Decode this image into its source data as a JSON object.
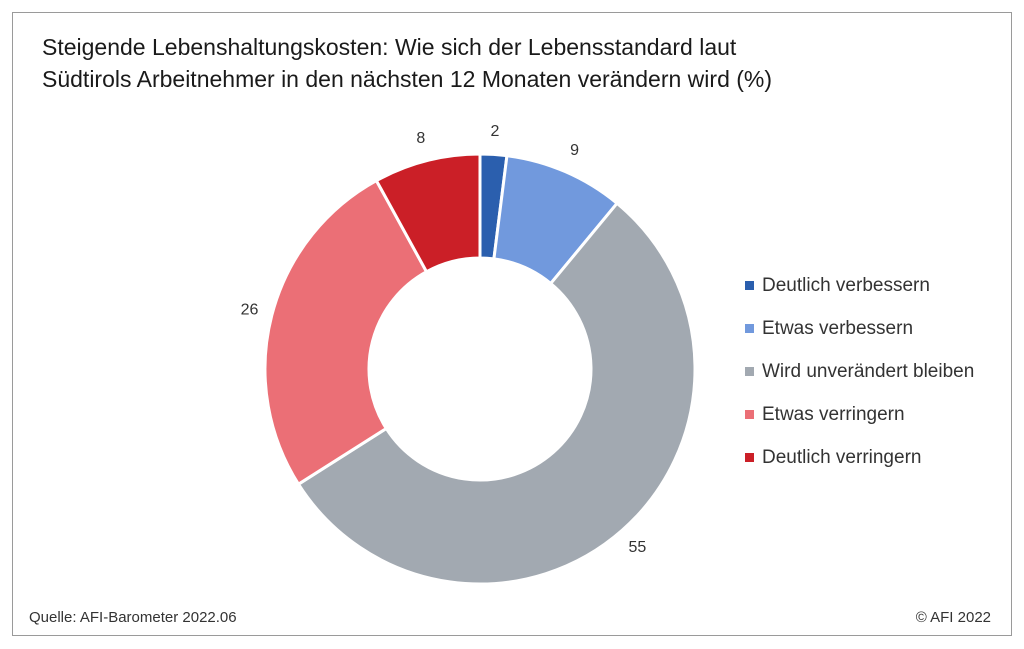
{
  "chart_data": {
    "type": "pie",
    "variant": "donut",
    "title": "Steigende Lebenshaltungskosten: Wie sich der Lebensstandard laut Südtirols Arbeitnehmer in den nächsten 12 Monaten verändern wird (%)",
    "title_lines": [
      "Steigende Lebenshaltungskosten: Wie sich der Lebensstandard laut",
      "Südtirols Arbeitnehmer in den nächsten 12 Monaten verändern wird (%)"
    ],
    "categories": [
      "Deutlich verbessern",
      "Etwas verbessern",
      "Wird unverändert bleiben",
      "Etwas verringern",
      "Deutlich verringern"
    ],
    "values": [
      2,
      9,
      55,
      26,
      8
    ],
    "colors": [
      "#2b5fae",
      "#7199dd",
      "#a2a9b1",
      "#eb6f76",
      "#cb1f27"
    ],
    "unit": "%",
    "legend_position": "right"
  },
  "footer": {
    "source": "Quelle: AFI-Barometer 2022.06",
    "copyright": "© AFI 2022"
  }
}
